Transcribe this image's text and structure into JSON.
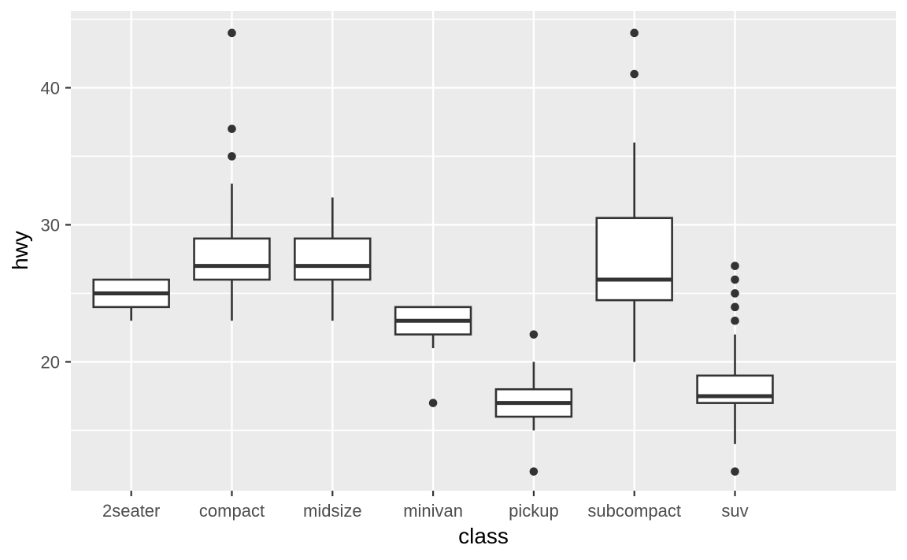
{
  "chart_data": {
    "type": "boxplot",
    "title": "",
    "xlabel": "class",
    "ylabel": "hwy",
    "categories": [
      "2seater",
      "compact",
      "midsize",
      "minivan",
      "pickup",
      "subcompact",
      "suv"
    ],
    "y_ticks": [
      20,
      30,
      40
    ],
    "y_minor_ticks": [
      15,
      25,
      35,
      45
    ],
    "ylim": [
      10.6,
      45.6
    ],
    "grid": true,
    "legend": false,
    "series": [
      {
        "category": "2seater",
        "whisker_low": 23,
        "q1": 24,
        "median": 25,
        "q3": 26,
        "whisker_high": 26,
        "outliers": []
      },
      {
        "category": "compact",
        "whisker_low": 23,
        "q1": 26,
        "median": 27,
        "q3": 29,
        "whisker_high": 33,
        "outliers": [
          44,
          37,
          35
        ]
      },
      {
        "category": "midsize",
        "whisker_low": 23,
        "q1": 26,
        "median": 27,
        "q3": 29,
        "whisker_high": 32,
        "outliers": []
      },
      {
        "category": "minivan",
        "whisker_low": 21,
        "q1": 22,
        "median": 23,
        "q3": 24,
        "whisker_high": 24,
        "outliers": [
          17
        ]
      },
      {
        "category": "pickup",
        "whisker_low": 15,
        "q1": 16,
        "median": 17,
        "q3": 18,
        "whisker_high": 20,
        "outliers": [
          22,
          12
        ]
      },
      {
        "category": "subcompact",
        "whisker_low": 20,
        "q1": 24.5,
        "median": 26,
        "q3": 30.5,
        "whisker_high": 36,
        "outliers": [
          44,
          41
        ]
      },
      {
        "category": "suv",
        "whisker_low": 14,
        "q1": 17,
        "median": 17.5,
        "q3": 19,
        "whisker_high": 22,
        "outliers": [
          27,
          26,
          25,
          24,
          23,
          12
        ]
      }
    ],
    "colors": {
      "background": "#FFFFFF",
      "panel_bg": "#EBEBEB",
      "grid": "#FFFFFF",
      "box_stroke": "#333333",
      "box_fill": "#FFFFFF",
      "outlier": "#333333",
      "tick_label": "#4D4D4D",
      "axis_title": "#000000"
    }
  }
}
